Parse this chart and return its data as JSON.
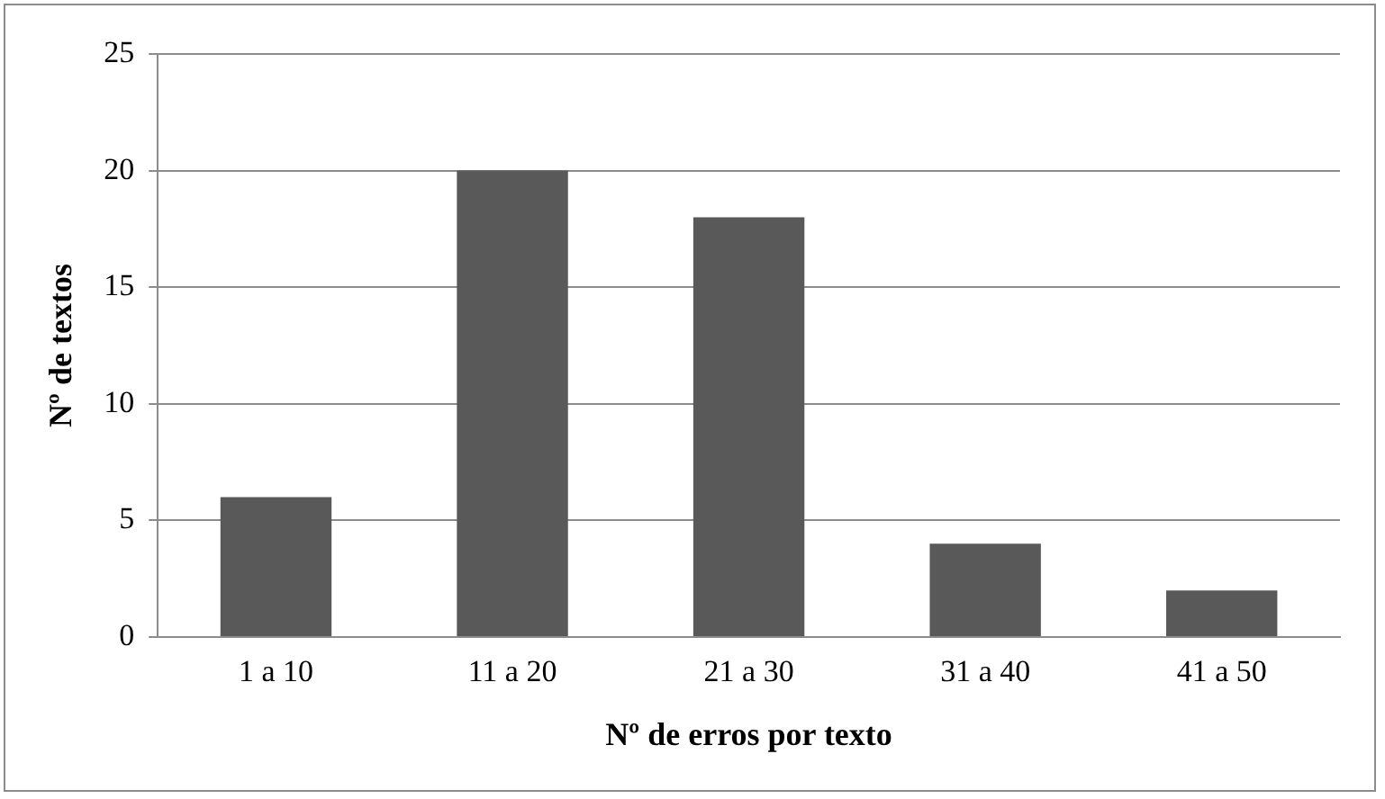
{
  "chart_data": {
    "type": "bar",
    "xlabel": "Nº de erros por texto",
    "ylabel": "Nº de textos",
    "categories": [
      "1 a 10",
      "11 a 20",
      "21 a 30",
      "31 a 40",
      "41 a 50"
    ],
    "values": [
      6,
      20,
      18,
      4,
      2
    ],
    "color": "#595959",
    "ylim": [
      0,
      25
    ],
    "yticks": [
      0,
      5,
      10,
      15,
      20,
      25
    ],
    "grid": "y",
    "legend": false
  }
}
